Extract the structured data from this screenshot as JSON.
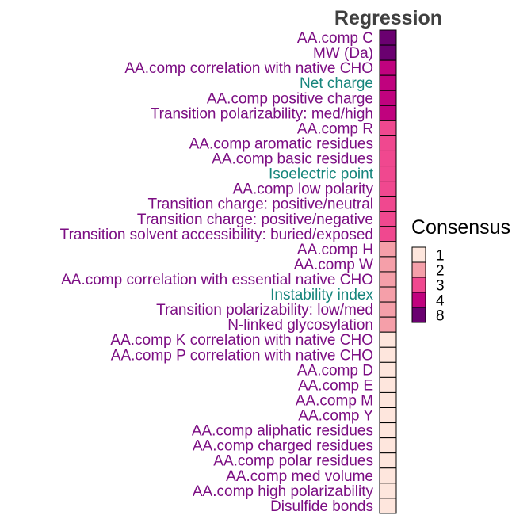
{
  "chart_data": {
    "type": "heatmap",
    "title": "Regression",
    "rows": [
      {
        "label": "AA.comp C",
        "consensus": 8,
        "group": "purple"
      },
      {
        "label": "MW (Da)",
        "consensus": 8,
        "group": "purple"
      },
      {
        "label": "AA.comp correlation with native CHO",
        "consensus": 4,
        "group": "purple"
      },
      {
        "label": "Net charge",
        "consensus": 4,
        "group": "teal"
      },
      {
        "label": "AA.comp positive charge",
        "consensus": 4,
        "group": "purple"
      },
      {
        "label": "Transition polarizability: med/high",
        "consensus": 4,
        "group": "purple"
      },
      {
        "label": "AA.comp R",
        "consensus": 3,
        "group": "purple"
      },
      {
        "label": "AA.comp aromatic residues",
        "consensus": 3,
        "group": "purple"
      },
      {
        "label": "AA.comp basic residues",
        "consensus": 3,
        "group": "purple"
      },
      {
        "label": "Isoelectric point",
        "consensus": 3,
        "group": "teal"
      },
      {
        "label": "AA.comp low polarity",
        "consensus": 3,
        "group": "purple"
      },
      {
        "label": "Transition charge: positive/neutral",
        "consensus": 3,
        "group": "purple"
      },
      {
        "label": "Transition charge: positive/negative",
        "consensus": 3,
        "group": "purple"
      },
      {
        "label": "Transition solvent accessibility: buried/exposed",
        "consensus": 3,
        "group": "purple"
      },
      {
        "label": "AA.comp H",
        "consensus": 2,
        "group": "purple"
      },
      {
        "label": "AA.comp W",
        "consensus": 2,
        "group": "purple"
      },
      {
        "label": "AA.comp correlation with essential native CHO",
        "consensus": 2,
        "group": "purple"
      },
      {
        "label": "Instability index",
        "consensus": 2,
        "group": "teal"
      },
      {
        "label": "Transition polarizability: low/med",
        "consensus": 2,
        "group": "purple"
      },
      {
        "label": "N-linked glycosylation",
        "consensus": 2,
        "group": "purple"
      },
      {
        "label": "AA.comp K correlation with native CHO",
        "consensus": 1,
        "group": "purple"
      },
      {
        "label": "AA.comp P correlation with native CHO",
        "consensus": 1,
        "group": "purple"
      },
      {
        "label": "AA.comp D",
        "consensus": 1,
        "group": "purple"
      },
      {
        "label": "AA.comp E",
        "consensus": 1,
        "group": "purple"
      },
      {
        "label": "AA.comp M",
        "consensus": 1,
        "group": "purple"
      },
      {
        "label": "AA.comp Y",
        "consensus": 1,
        "group": "purple"
      },
      {
        "label": "AA.comp aliphatic residues",
        "consensus": 1,
        "group": "purple"
      },
      {
        "label": "AA.comp charged residues",
        "consensus": 1,
        "group": "purple"
      },
      {
        "label": "AA.comp polar residues",
        "consensus": 1,
        "group": "purple"
      },
      {
        "label": "AA.comp med volume",
        "consensus": 1,
        "group": "purple"
      },
      {
        "label": "AA.comp high polarizability",
        "consensus": 1,
        "group": "purple"
      },
      {
        "label": "Disulfide bonds",
        "consensus": 1,
        "group": "purple"
      }
    ],
    "legend": {
      "title": "Consensus",
      "placement": "right",
      "levels": [
        {
          "label": "1",
          "value": 1,
          "color": "#fee6dd"
        },
        {
          "label": "2",
          "value": 2,
          "color": "#f59fa9"
        },
        {
          "label": "3",
          "value": 3,
          "color": "#f0488f"
        },
        {
          "label": "4",
          "value": 4,
          "color": "#c0027e"
        },
        {
          "label": "8",
          "value": 8,
          "color": "#6a0070"
        }
      ]
    },
    "label_colors": {
      "purple": "#7c0e83",
      "teal": "#16857c"
    },
    "title_color": "#404040",
    "cell_border_color": "#000000",
    "grid": false
  }
}
